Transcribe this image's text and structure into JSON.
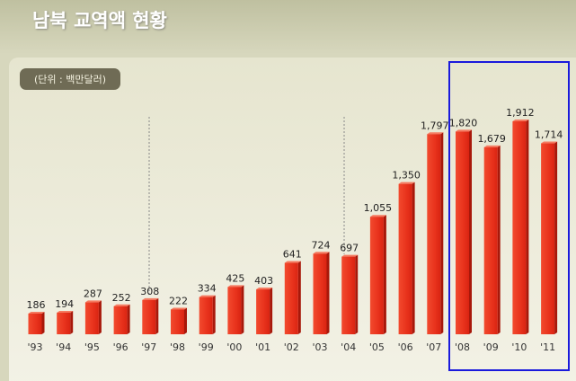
{
  "chart_data": {
    "type": "bar",
    "title": "남북 교역액 현황",
    "subtitle": "(단위 : 백만달러)",
    "categories": [
      "'93",
      "'94",
      "'95",
      "'96",
      "'97",
      "'98",
      "'99",
      "'00",
      "'01",
      "'02",
      "'03",
      "'04",
      "'05",
      "'06",
      "'07",
      "'08",
      "'09",
      "'10",
      "'11"
    ],
    "values": [
      186,
      194,
      287,
      252,
      308,
      222,
      334,
      425,
      403,
      641,
      724,
      697,
      1055,
      1350,
      1797,
      1820,
      1679,
      1912,
      1714
    ],
    "value_labels": [
      "186",
      "194",
      "287",
      "252",
      "308",
      "222",
      "334",
      "425",
      "403",
      "641",
      "724",
      "697",
      "1,055",
      "1,350",
      "1,797",
      "1,820",
      "1,679",
      "1,912",
      "1,714"
    ],
    "color": "#e8321c"
  }
}
